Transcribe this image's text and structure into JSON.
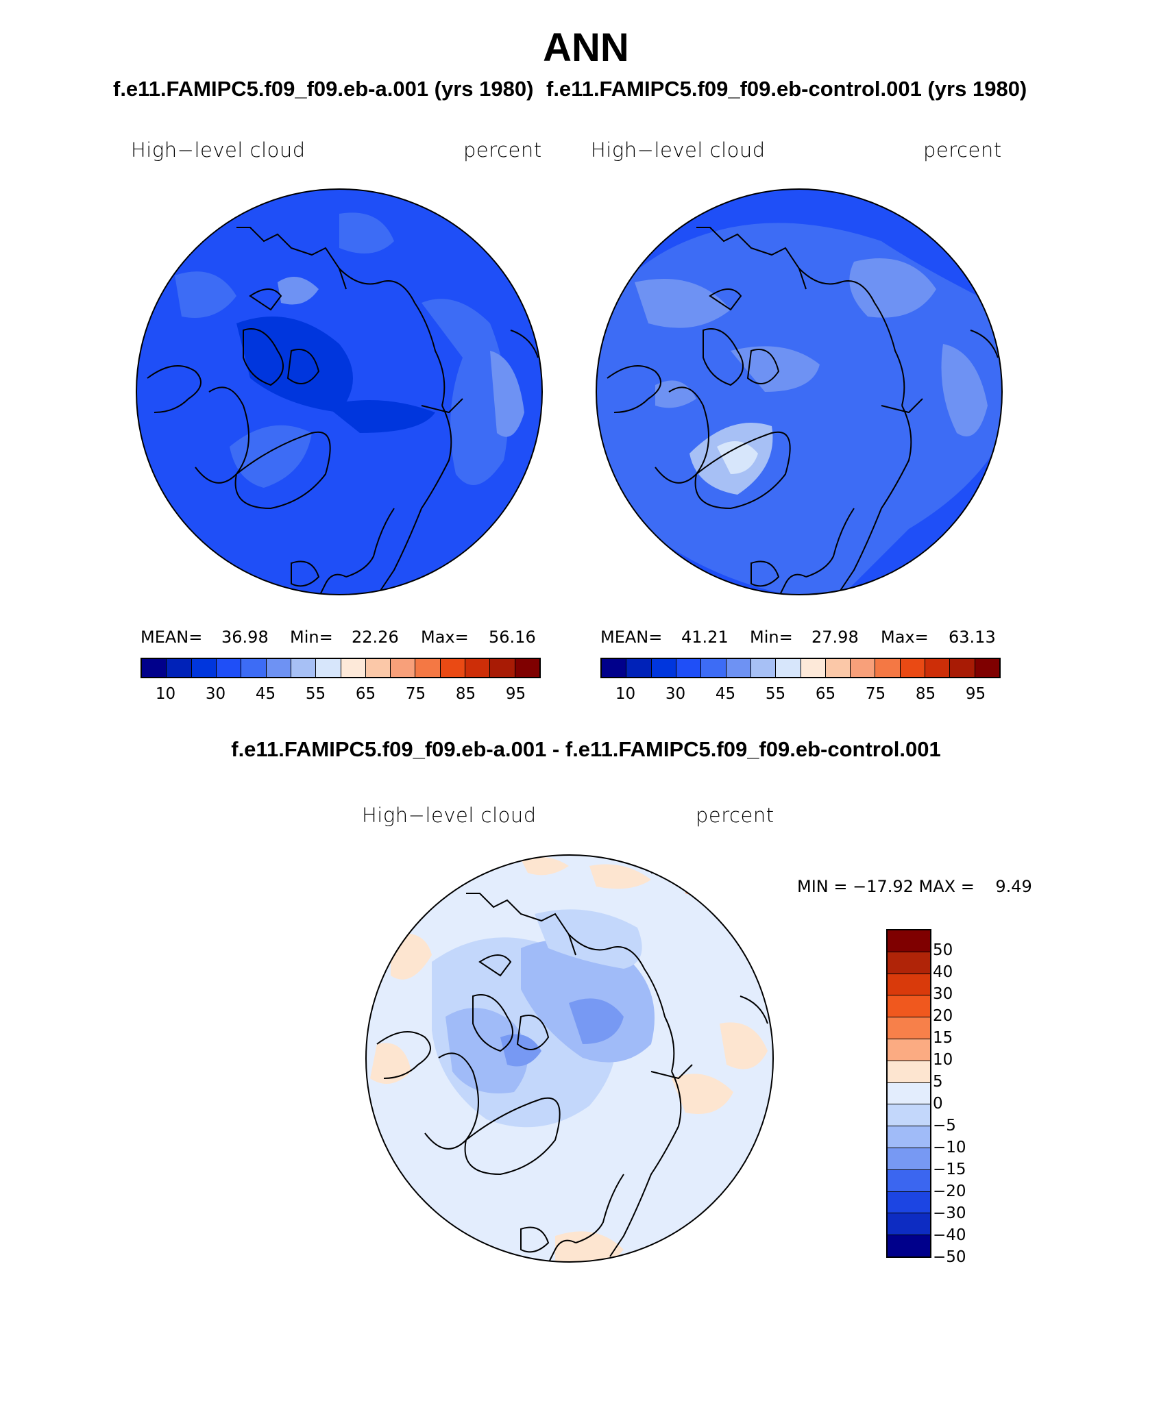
{
  "title": "ANN",
  "case_a_title": "f.e11.FAMIPC5.f09_f09.eb-a.001 (yrs 1980)",
  "case_b_title": "f.e11.FAMIPC5.f09_f09.eb-control.001 (yrs 1980)",
  "diff_title": "f.e11.FAMIPC5.f09_f09.eb-a.001 - f.e11.FAMIPC5.f09_f09.eb-control.001",
  "panels": [
    {
      "variable": "High−level cloud",
      "units": "percent",
      "mean_label": "MEAN=",
      "mean": "36.98",
      "min_label": "Min=",
      "min": "22.26",
      "max_label": "Max=",
      "max": "56.16"
    },
    {
      "variable": "High−level cloud",
      "units": "percent",
      "mean_label": "MEAN=",
      "mean": "41.21",
      "min_label": "Min=",
      "min": "27.98",
      "max_label": "Max=",
      "max": "63.13"
    }
  ],
  "diff_panel": {
    "variable": "High−level cloud",
    "units": "percent",
    "min_max_label": "MIN = −17.92 MAX =    9.49"
  },
  "colorbar": {
    "colors": [
      "#00008b",
      "#0022b8",
      "#0036dd",
      "#1f4ff7",
      "#3d6cf5",
      "#6e92f3",
      "#a7c0f5",
      "#d7e6fb",
      "#fde9d9",
      "#fbc8a8",
      "#f8a07a",
      "#f47844",
      "#ea4a14",
      "#cd2e08",
      "#a81b05",
      "#7f0000"
    ],
    "tick_labels": [
      "10",
      "30",
      "45",
      "55",
      "65",
      "75",
      "85",
      "95"
    ]
  },
  "diff_colorbar": {
    "colors": [
      "#7f0000",
      "#b02408",
      "#d93a0b",
      "#f0581e",
      "#f7804a",
      "#fbab82",
      "#fde5d0",
      "#e3edfd",
      "#c3d7fb",
      "#a0bbf8",
      "#7799f3",
      "#3b66f0",
      "#1c45e3",
      "#0d2cc2",
      "#00008b"
    ],
    "tick_labels": [
      "50",
      "40",
      "30",
      "20",
      "15",
      "10",
      "5",
      "0",
      "−5",
      "−10",
      "−15",
      "−20",
      "−30",
      "−40",
      "−50"
    ]
  }
}
